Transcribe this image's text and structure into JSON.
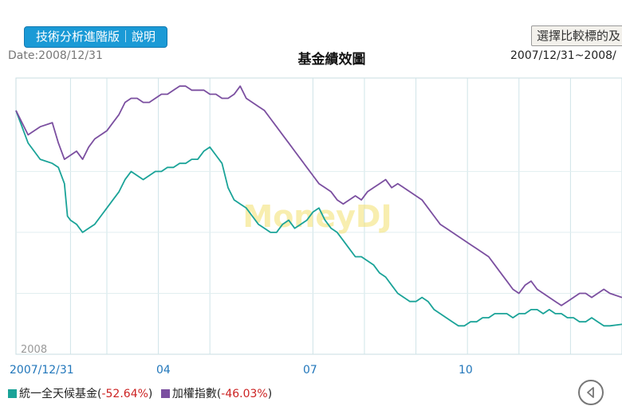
{
  "header": {
    "tech_button": "技術分析進階版｜說明",
    "compare_button": "選擇比較標的及",
    "date_label": "Date:2008/12/31",
    "title": "基金績效圖",
    "range": "2007/12/31~2008/"
  },
  "chart_data": {
    "type": "line",
    "title": "基金績效圖",
    "x_ticks": [
      "2007/12/31",
      "04",
      "07",
      "10"
    ],
    "year_label": "2008",
    "watermark": "MoneyDJ",
    "grid": true,
    "legend_position": "bottom",
    "series": [
      {
        "name": "統一全天候基金",
        "change": "-52.64%",
        "color": "#1aa398",
        "points": [
          [
            0,
            0
          ],
          [
            0.02,
            -8
          ],
          [
            0.04,
            -12
          ],
          [
            0.06,
            -13
          ],
          [
            0.07,
            -14
          ],
          [
            0.08,
            -18
          ],
          [
            0.085,
            -26
          ],
          [
            0.09,
            -27
          ],
          [
            0.1,
            -28
          ],
          [
            0.11,
            -30
          ],
          [
            0.12,
            -29
          ],
          [
            0.13,
            -28
          ],
          [
            0.14,
            -26
          ],
          [
            0.15,
            -24
          ],
          [
            0.16,
            -22
          ],
          [
            0.17,
            -20
          ],
          [
            0.18,
            -17
          ],
          [
            0.19,
            -15
          ],
          [
            0.2,
            -16
          ],
          [
            0.21,
            -17
          ],
          [
            0.22,
            -16
          ],
          [
            0.23,
            -15
          ],
          [
            0.24,
            -15
          ],
          [
            0.25,
            -14
          ],
          [
            0.26,
            -14
          ],
          [
            0.27,
            -13
          ],
          [
            0.28,
            -13
          ],
          [
            0.29,
            -12
          ],
          [
            0.3,
            -12
          ],
          [
            0.31,
            -10
          ],
          [
            0.32,
            -9
          ],
          [
            0.33,
            -11
          ],
          [
            0.34,
            -13
          ],
          [
            0.35,
            -19
          ],
          [
            0.36,
            -22
          ],
          [
            0.37,
            -23
          ],
          [
            0.38,
            -24
          ],
          [
            0.39,
            -26
          ],
          [
            0.4,
            -28
          ],
          [
            0.41,
            -29
          ],
          [
            0.42,
            -30
          ],
          [
            0.43,
            -30
          ],
          [
            0.44,
            -28
          ],
          [
            0.45,
            -27
          ],
          [
            0.46,
            -29
          ],
          [
            0.47,
            -28
          ],
          [
            0.48,
            -27
          ],
          [
            0.49,
            -25
          ],
          [
            0.5,
            -24
          ],
          [
            0.51,
            -27
          ],
          [
            0.52,
            -29
          ],
          [
            0.53,
            -30
          ],
          [
            0.54,
            -32
          ],
          [
            0.55,
            -34
          ],
          [
            0.56,
            -36
          ],
          [
            0.57,
            -36
          ],
          [
            0.58,
            -37
          ],
          [
            0.59,
            -38
          ],
          [
            0.6,
            -40
          ],
          [
            0.61,
            -41
          ],
          [
            0.62,
            -43
          ],
          [
            0.63,
            -45
          ],
          [
            0.64,
            -46
          ],
          [
            0.65,
            -47
          ],
          [
            0.66,
            -47
          ],
          [
            0.67,
            -46
          ],
          [
            0.68,
            -47
          ],
          [
            0.69,
            -49
          ],
          [
            0.7,
            -50
          ],
          [
            0.71,
            -51
          ],
          [
            0.72,
            -52
          ],
          [
            0.73,
            -53
          ],
          [
            0.74,
            -53
          ],
          [
            0.75,
            -52
          ],
          [
            0.76,
            -52
          ],
          [
            0.77,
            -51
          ],
          [
            0.78,
            -51
          ],
          [
            0.79,
            -50
          ],
          [
            0.8,
            -50
          ],
          [
            0.81,
            -50
          ],
          [
            0.82,
            -51
          ],
          [
            0.83,
            -50
          ],
          [
            0.84,
            -50
          ],
          [
            0.85,
            -49
          ],
          [
            0.86,
            -49
          ],
          [
            0.87,
            -50
          ],
          [
            0.88,
            -49
          ],
          [
            0.89,
            -50
          ],
          [
            0.9,
            -50
          ],
          [
            0.91,
            -51
          ],
          [
            0.92,
            -51
          ],
          [
            0.93,
            -52
          ],
          [
            0.94,
            -52
          ],
          [
            0.95,
            -51
          ],
          [
            0.96,
            -52
          ],
          [
            0.97,
            -53
          ],
          [
            0.98,
            -53
          ],
          [
            1.0,
            -52.64
          ]
        ]
      },
      {
        "name": "加權指數",
        "change": "-46.03%",
        "color": "#7b4fa0",
        "points": [
          [
            0,
            0
          ],
          [
            0.02,
            -6
          ],
          [
            0.04,
            -4
          ],
          [
            0.06,
            -3
          ],
          [
            0.07,
            -8
          ],
          [
            0.08,
            -12
          ],
          [
            0.09,
            -11
          ],
          [
            0.1,
            -10
          ],
          [
            0.11,
            -12
          ],
          [
            0.12,
            -9
          ],
          [
            0.13,
            -7
          ],
          [
            0.14,
            -6
          ],
          [
            0.15,
            -5
          ],
          [
            0.16,
            -3
          ],
          [
            0.17,
            -1
          ],
          [
            0.18,
            2
          ],
          [
            0.19,
            3
          ],
          [
            0.2,
            3
          ],
          [
            0.21,
            2
          ],
          [
            0.22,
            2
          ],
          [
            0.23,
            3
          ],
          [
            0.24,
            4
          ],
          [
            0.25,
            4
          ],
          [
            0.26,
            5
          ],
          [
            0.27,
            6
          ],
          [
            0.28,
            6
          ],
          [
            0.29,
            5
          ],
          [
            0.3,
            5
          ],
          [
            0.31,
            5
          ],
          [
            0.32,
            4
          ],
          [
            0.33,
            4
          ],
          [
            0.34,
            3
          ],
          [
            0.35,
            3
          ],
          [
            0.36,
            4
          ],
          [
            0.37,
            6
          ],
          [
            0.38,
            3
          ],
          [
            0.39,
            2
          ],
          [
            0.4,
            1
          ],
          [
            0.41,
            0
          ],
          [
            0.42,
            -2
          ],
          [
            0.43,
            -4
          ],
          [
            0.44,
            -6
          ],
          [
            0.45,
            -8
          ],
          [
            0.46,
            -10
          ],
          [
            0.47,
            -12
          ],
          [
            0.48,
            -14
          ],
          [
            0.49,
            -16
          ],
          [
            0.5,
            -18
          ],
          [
            0.51,
            -19
          ],
          [
            0.52,
            -20
          ],
          [
            0.53,
            -22
          ],
          [
            0.54,
            -23
          ],
          [
            0.55,
            -22
          ],
          [
            0.56,
            -21
          ],
          [
            0.57,
            -22
          ],
          [
            0.58,
            -20
          ],
          [
            0.59,
            -19
          ],
          [
            0.6,
            -18
          ],
          [
            0.61,
            -17
          ],
          [
            0.62,
            -19
          ],
          [
            0.63,
            -18
          ],
          [
            0.64,
            -19
          ],
          [
            0.65,
            -20
          ],
          [
            0.66,
            -21
          ],
          [
            0.67,
            -22
          ],
          [
            0.68,
            -24
          ],
          [
            0.69,
            -26
          ],
          [
            0.7,
            -28
          ],
          [
            0.71,
            -29
          ],
          [
            0.72,
            -30
          ],
          [
            0.73,
            -31
          ],
          [
            0.74,
            -32
          ],
          [
            0.75,
            -33
          ],
          [
            0.76,
            -34
          ],
          [
            0.77,
            -35
          ],
          [
            0.78,
            -36
          ],
          [
            0.79,
            -38
          ],
          [
            0.8,
            -40
          ],
          [
            0.81,
            -42
          ],
          [
            0.82,
            -44
          ],
          [
            0.83,
            -45
          ],
          [
            0.84,
            -43
          ],
          [
            0.85,
            -42
          ],
          [
            0.86,
            -44
          ],
          [
            0.87,
            -45
          ],
          [
            0.88,
            -46
          ],
          [
            0.89,
            -47
          ],
          [
            0.9,
            -48
          ],
          [
            0.91,
            -47
          ],
          [
            0.92,
            -46
          ],
          [
            0.93,
            -45
          ],
          [
            0.94,
            -45
          ],
          [
            0.95,
            -46
          ],
          [
            0.96,
            -45
          ],
          [
            0.97,
            -44
          ],
          [
            0.98,
            -45
          ],
          [
            1.0,
            -46.03
          ]
        ]
      }
    ]
  },
  "nav": {
    "back_icon": "back-arrow-icon"
  }
}
